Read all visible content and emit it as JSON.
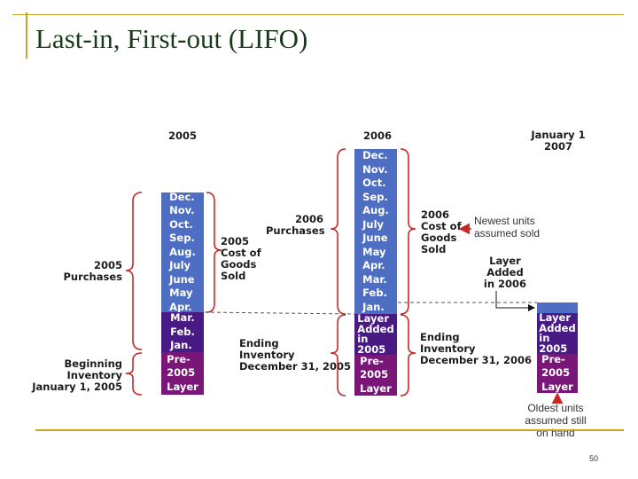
{
  "title": "Last-in, First-out (LIFO)",
  "page_number": "50",
  "colors": {
    "purchases": "#4e6ec4",
    "layer_added": "#4a1a84",
    "pre_layer": "#7a1678",
    "brace": "#c62828",
    "rule": "#c9a227"
  },
  "headers": {
    "y2005": "2005",
    "y2006": "2006",
    "jan2007": "January 1\n2007"
  },
  "left": {
    "purchases": "2005\nPurchases",
    "beginning_inventory": "Beginning\nInventory\nJanuary 1, 2005",
    "months_purchased": "Dec.\nNov.\nOct.\nSep.\nAug.\nJuly\nJune\nMay\nApr.",
    "months_retained": "Mar.\nFeb.\nJan.",
    "pre_layer": "Pre-\n2005\nLayer",
    "cogs": "2005\nCost of\nGoods\nSold",
    "ending_inventory": "Ending\nInventory\nDecember 31, 2005"
  },
  "middle": {
    "purchases": "2006\nPurchases",
    "months": "Dec.\nNov.\nOct.\nSep.\nAug.\nJuly\nJune\nMay\nApr.\nMar.\nFeb.\nJan.",
    "layer_added": "Layer\nAdded\nin\n2005",
    "pre_layer": "Pre-\n2005\nLayer",
    "cogs": "2006\nCost of\nGoods\nSold",
    "ending_inventory": "Ending\nInventory\nDecember 31, 2006"
  },
  "right": {
    "layer_added_2006": "Layer\nAdded\nin 2006",
    "layer_added_2005": "Layer\nAdded\nin\n2005",
    "pre_layer": "Pre-\n2005\nLayer"
  },
  "annotations": {
    "newest": "Newest units\nassumed sold",
    "oldest": "Oldest units\nassumed still\non hand"
  }
}
